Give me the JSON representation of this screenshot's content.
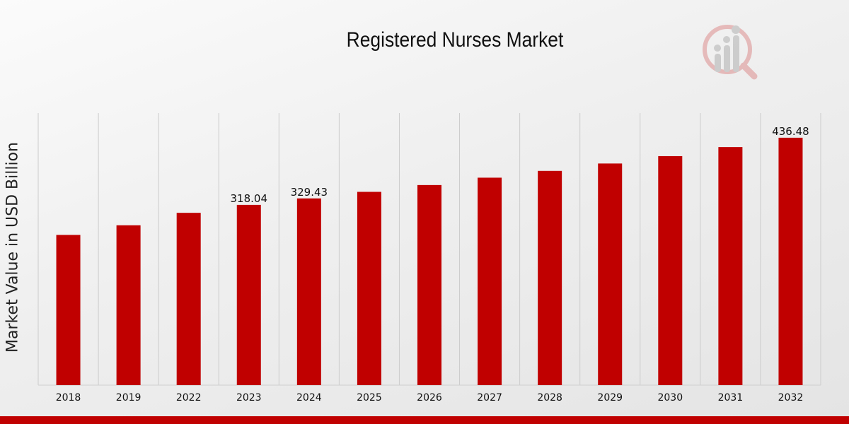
{
  "colors": {
    "bar": "#c00000",
    "accent_bar": "#c00000",
    "grid": "#cccccc"
  },
  "chart_data": {
    "type": "bar",
    "title": "Registered Nurses Market",
    "xlabel": "",
    "ylabel": "Market Value in USD Billion",
    "categories": [
      "2018",
      "2019",
      "2022",
      "2023",
      "2024",
      "2025",
      "2026",
      "2027",
      "2028",
      "2029",
      "2030",
      "2031",
      "2032"
    ],
    "values": [
      265,
      282,
      304,
      318.04,
      329.43,
      341,
      353,
      366,
      378,
      391,
      404,
      420,
      436.48
    ],
    "data_labels": {
      "2023": "318.04",
      "2024": "329.43",
      "2032": "436.48"
    },
    "ylim": [
      0,
      480
    ],
    "grid": "vertical",
    "legend": "none"
  },
  "watermark_icon": "analytics-magnifier-logo"
}
